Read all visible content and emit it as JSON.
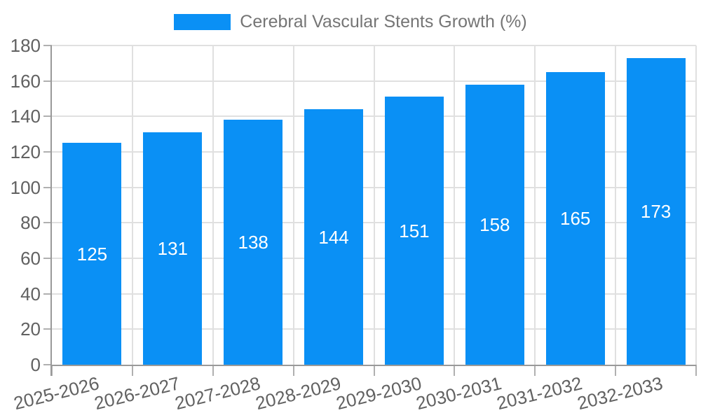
{
  "chart_data": {
    "type": "bar",
    "title": "",
    "legend": {
      "label": "Cerebral Vascular Stents Growth (%)",
      "position": "top-center"
    },
    "categories": [
      "2025-2026",
      "2026-2027",
      "2027-2028",
      "2028-2029",
      "2029-2030",
      "2030-2031",
      "2031-2032",
      "2032-2033"
    ],
    "series": [
      {
        "name": "Cerebral Vascular Stents Growth (%)",
        "values": [
          125,
          131,
          138,
          144,
          151,
          158,
          165,
          173
        ]
      }
    ],
    "xlabel": "",
    "ylabel": "",
    "ylim": [
      0,
      180
    ],
    "ytick_step": 20,
    "grid": true,
    "value_label_position": "inside-center",
    "value_label_color": "#ffffff",
    "colors": {
      "bar": "#0a90f5",
      "axis": "#999999",
      "grid": "#e0e0e0",
      "tick": "#b0b0b0",
      "tick_label": "#616161",
      "legend_text": "#757575",
      "background": "#ffffff"
    }
  }
}
